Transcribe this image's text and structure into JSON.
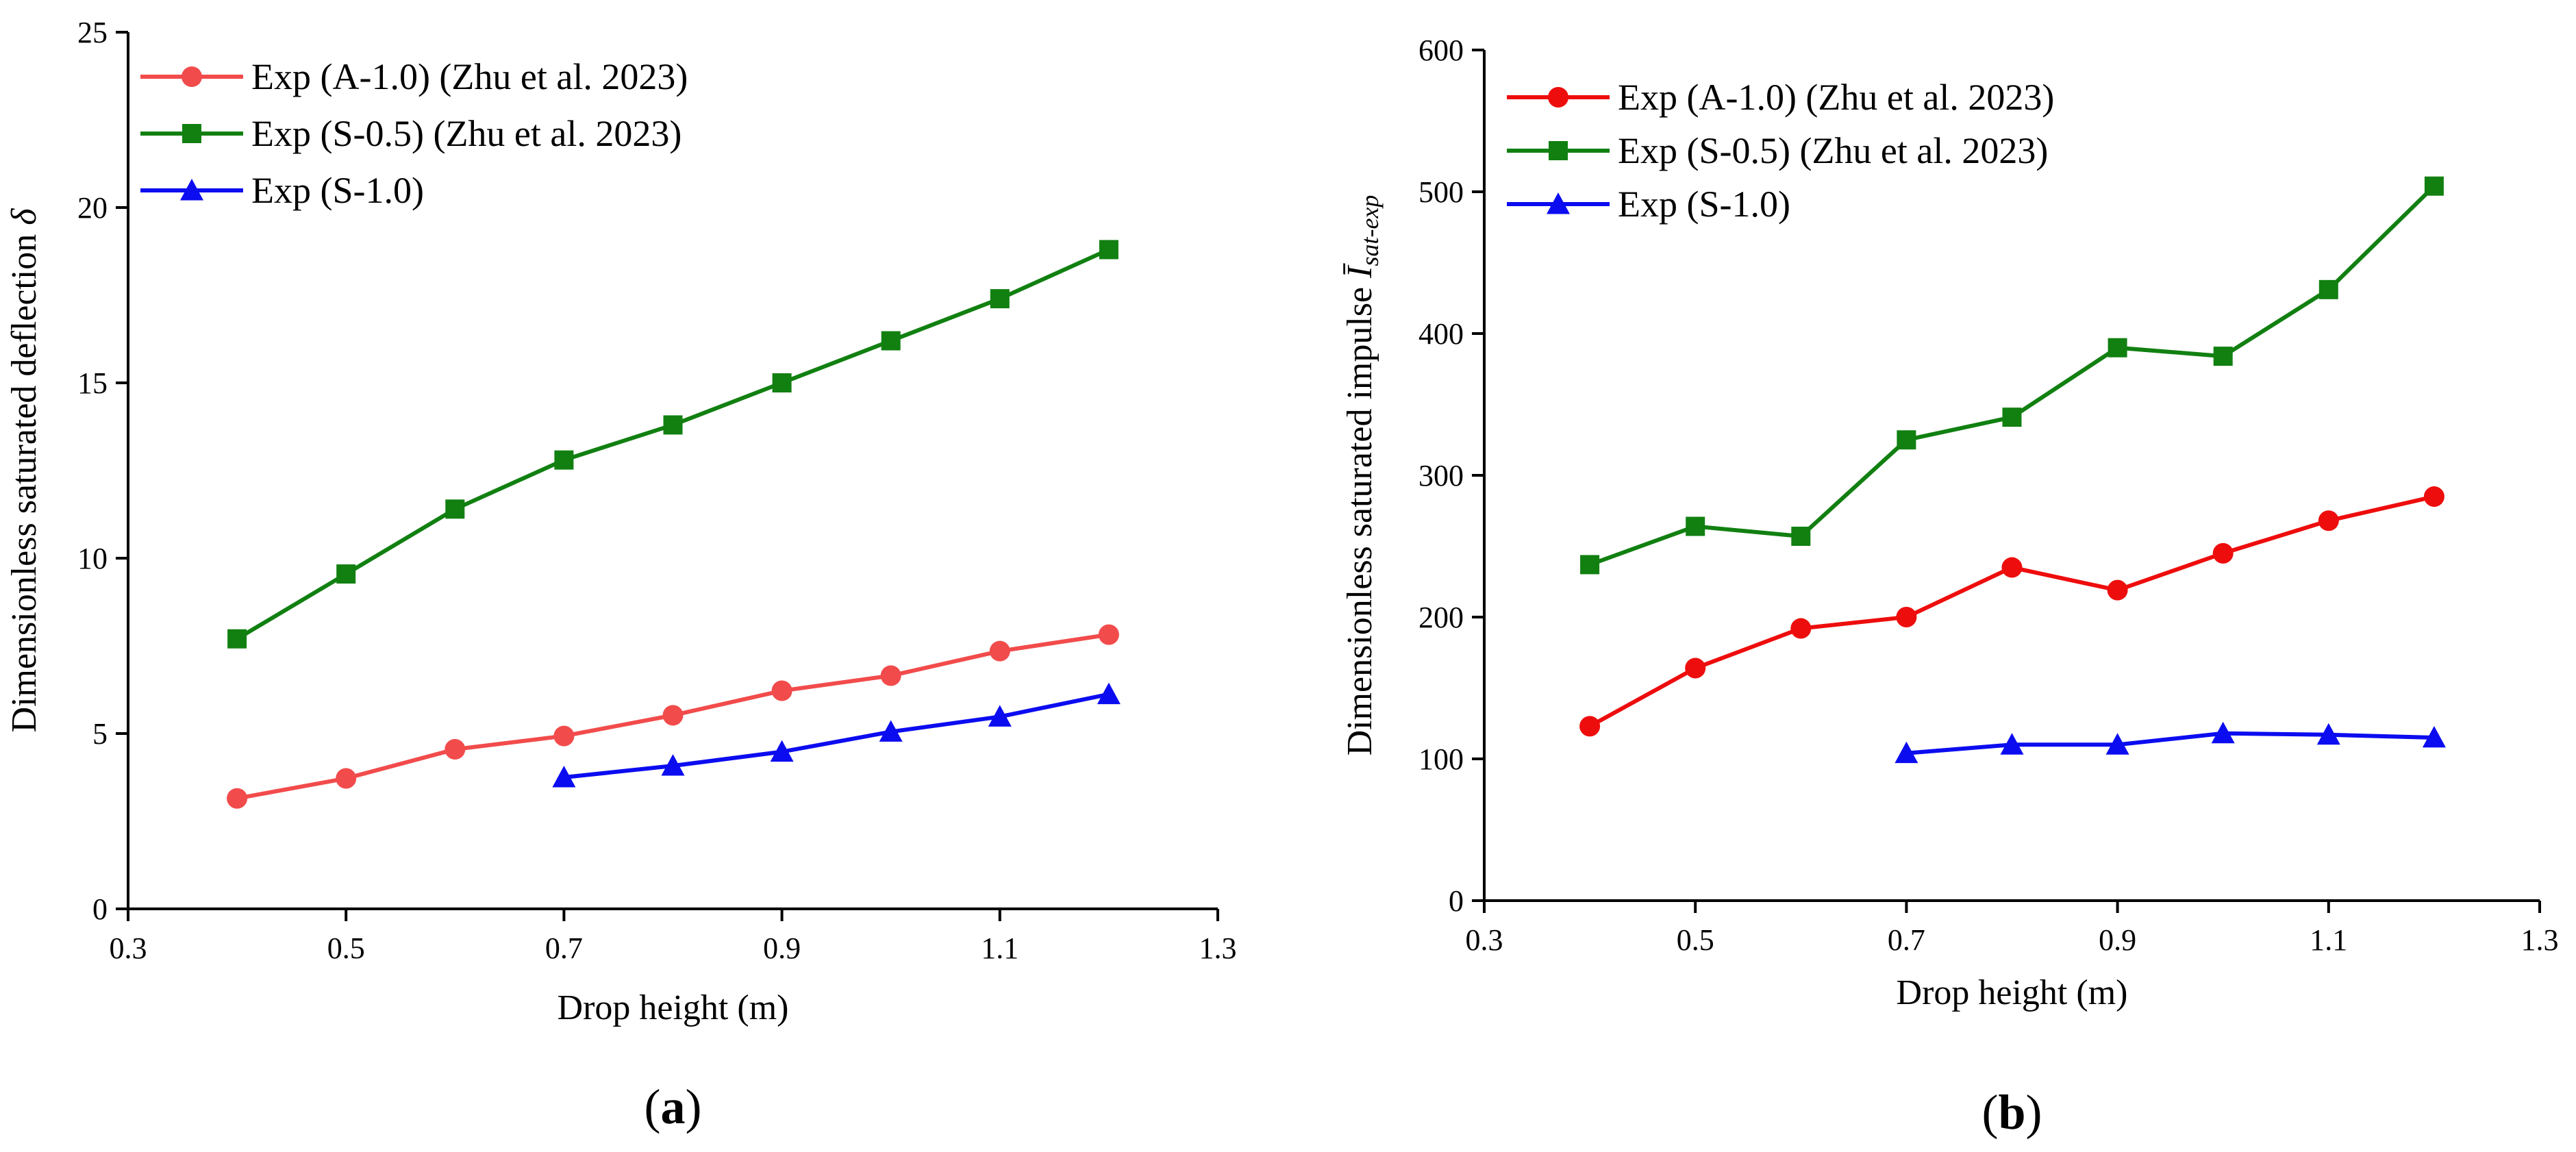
{
  "chart_data": [
    {
      "type": "line",
      "panel_label": "a",
      "xlabel": "Drop height (m)",
      "ylabel": "Dimensionless saturated deflection δ",
      "ylabel_text": "Dimensionless saturated deflection ",
      "ylabel_symbol": "δ",
      "xlim": [
        0.3,
        1.3
      ],
      "ylim": [
        0,
        25
      ],
      "x_ticks": [
        "0.3",
        "0.5",
        "0.7",
        "0.9",
        "1.1",
        "1.3"
      ],
      "x_tick_values": [
        0.3,
        0.5,
        0.7,
        0.9,
        1.1,
        1.3
      ],
      "y_ticks": [
        "0",
        "5",
        "10",
        "15",
        "20",
        "25"
      ],
      "y_tick_values": [
        0,
        5,
        10,
        15,
        20,
        25
      ],
      "grid": false,
      "legend_position": "top-left",
      "series": [
        {
          "name": "Exp (A-1.0) (Zhu et al. 2023)",
          "color": "#f24b4b",
          "marker": "circle",
          "x": [
            0.4,
            0.5,
            0.6,
            0.7,
            0.8,
            0.9,
            1.0,
            1.1,
            1.2
          ],
          "y": [
            3.15,
            3.72,
            4.55,
            4.93,
            5.52,
            6.22,
            6.65,
            7.35,
            7.82
          ]
        },
        {
          "name": "Exp (S-0.5) (Zhu et al. 2023)",
          "color": "#118011",
          "marker": "square",
          "x": [
            0.4,
            0.5,
            0.6,
            0.7,
            0.8,
            0.9,
            1.0,
            1.1,
            1.2
          ],
          "y": [
            7.7,
            9.55,
            11.4,
            12.8,
            13.8,
            15.0,
            16.2,
            17.4,
            18.8
          ]
        },
        {
          "name": "Exp (S-1.0)",
          "color": "#0c0cf0",
          "marker": "triangle",
          "x": [
            0.7,
            0.8,
            0.9,
            1.0,
            1.1,
            1.2
          ],
          "y": [
            3.75,
            4.08,
            4.48,
            5.05,
            5.48,
            6.12
          ]
        }
      ]
    },
    {
      "type": "line",
      "panel_label": "b",
      "xlabel": "Drop height (m)",
      "ylabel": "Dimensionless saturated impulse Ī sat-exp",
      "ylabel_text": "Dimensionless saturated impulse ",
      "ylabel_symbol": "Ī",
      "ylabel_subscript": "sat-exp",
      "xlim": [
        0.3,
        1.3
      ],
      "ylim": [
        0,
        600
      ],
      "x_ticks": [
        "0.3",
        "0.5",
        "0.7",
        "0.9",
        "1.1",
        "1.3"
      ],
      "x_tick_values": [
        0.3,
        0.5,
        0.7,
        0.9,
        1.1,
        1.3
      ],
      "y_ticks": [
        "0",
        "100",
        "200",
        "300",
        "400",
        "500",
        "600"
      ],
      "y_tick_values": [
        0,
        100,
        200,
        300,
        400,
        500,
        600
      ],
      "grid": false,
      "legend_position": "top-left",
      "series": [
        {
          "name": "Exp (A-1.0) (Zhu et al. 2023)",
          "color": "#ee0d0d",
          "marker": "circle",
          "x": [
            0.4,
            0.5,
            0.6,
            0.7,
            0.8,
            0.9,
            1.0,
            1.1,
            1.2
          ],
          "y": [
            123,
            164,
            192,
            200,
            235,
            219,
            245,
            268,
            285
          ]
        },
        {
          "name": "Exp (S-0.5) (Zhu et al. 2023)",
          "color": "#118011",
          "marker": "square",
          "x": [
            0.4,
            0.5,
            0.6,
            0.7,
            0.8,
            0.9,
            1.0,
            1.1,
            1.2
          ],
          "y": [
            237,
            264,
            257,
            325,
            341,
            390,
            384,
            431,
            504
          ]
        },
        {
          "name": "Exp (S-1.0)",
          "color": "#0c0cf0",
          "marker": "triangle",
          "x": [
            0.7,
            0.8,
            0.9,
            1.0,
            1.1,
            1.2
          ],
          "y": [
            104,
            110,
            110,
            118,
            117,
            115
          ]
        }
      ]
    }
  ]
}
